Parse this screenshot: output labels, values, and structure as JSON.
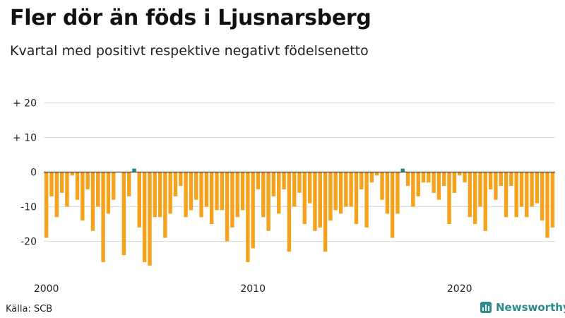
{
  "title": "Fler dör än föds i Ljusnarsberg",
  "subtitle": "Kvartal med positivt respektive negativt födelsenetto",
  "source": "Källa: SCB",
  "brand": "Newsworthy",
  "brand_icon": "bar-chart-logo-icon",
  "colors": {
    "negative": "#f5a21c",
    "positive": "#1f8a85",
    "grid": "#dddddd",
    "zero": "#333333"
  },
  "chart_data": {
    "type": "bar",
    "title": "Fler dör än föds i Ljusnarsberg",
    "subtitle": "Kvartal med positivt respektive negativt födelsenetto",
    "xlabel": "",
    "ylabel": "",
    "x_start_year": 2000,
    "periods_per_year": 4,
    "ylim": [
      -28,
      20
    ],
    "y_ticks": [
      20,
      10,
      0,
      -10,
      -20
    ],
    "y_tick_labels": [
      "+ 20",
      "+ 10",
      "0",
      "-10",
      "-20"
    ],
    "x_ticks": [
      2000,
      2010,
      2020
    ],
    "x_tick_labels": [
      "2000",
      "2010",
      "2020"
    ],
    "values": [
      -19,
      -7,
      -13,
      -6,
      -10,
      -1,
      -8,
      -14,
      -5,
      -17,
      -10,
      -26,
      -12,
      -8,
      0,
      -24,
      -7,
      1,
      -16,
      -26,
      -27,
      -13,
      -13,
      -19,
      -12,
      -7,
      -4,
      -13,
      -11,
      -8,
      -13,
      -10,
      -15,
      -11,
      -11,
      -20,
      -16,
      -13,
      -11,
      -26,
      -22,
      -5,
      -13,
      -17,
      -7,
      -12,
      -5,
      -23,
      -10,
      -6,
      -15,
      -9,
      -17,
      -16,
      -23,
      -14,
      -11,
      -12,
      -10,
      -10,
      -15,
      -5,
      -16,
      -3,
      -1,
      -8,
      -12,
      -19,
      -12,
      1,
      -4,
      -10,
      -7,
      -3,
      -3,
      -6,
      -8,
      -4,
      -15,
      -6,
      -1,
      -3,
      -13,
      -15,
      -10,
      -17,
      -5,
      -8,
      -4,
      -13,
      -4,
      -13,
      -10,
      -13,
      -10,
      -9,
      -14,
      -19,
      -16
    ]
  }
}
